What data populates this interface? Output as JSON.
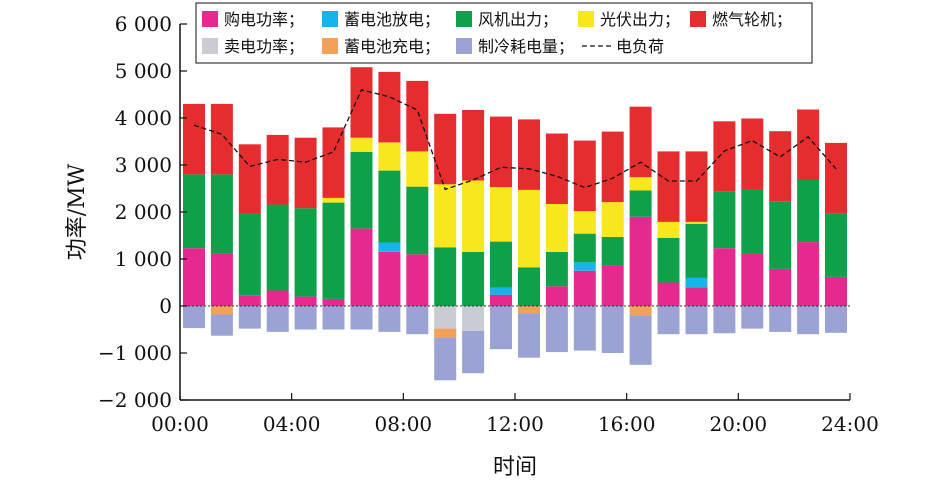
{
  "chart_data": {
    "type": "bar",
    "stacked": true,
    "xlabel": "时间",
    "ylabel": "功率/MW",
    "ylim": [
      -2000,
      6000
    ],
    "xlim": [
      0,
      24
    ],
    "x_ticks": [
      "00:00",
      "04:00",
      "08:00",
      "12:00",
      "16:00",
      "20:00",
      "24:00"
    ],
    "y_ticks": [
      "−2 000",
      "−1 000",
      "0",
      "1 000",
      "2 000",
      "3 000",
      "4 000",
      "5 000",
      "6 000"
    ],
    "hours": [
      1,
      2,
      3,
      4,
      5,
      6,
      7,
      8,
      9,
      10,
      11,
      12,
      13,
      14,
      15,
      16,
      17,
      18,
      19,
      20,
      21,
      22,
      23,
      24
    ],
    "legend_position": "top",
    "series": [
      {
        "name": "购电功率；",
        "color": "#e6298f",
        "values": [
          1230,
          1120,
          230,
          330,
          200,
          150,
          1650,
          1150,
          1100,
          0,
          0,
          240,
          0,
          420,
          750,
          870,
          1900,
          500,
          400,
          1230,
          1110,
          790,
          1360,
          620
        ]
      },
      {
        "name": "蓄电池放电；",
        "color": "#16b4ea",
        "values": [
          0,
          0,
          0,
          0,
          0,
          0,
          0,
          200,
          0,
          0,
          0,
          150,
          0,
          0,
          180,
          0,
          0,
          0,
          200,
          0,
          0,
          0,
          0,
          0
        ]
      },
      {
        "name": "风机出力；",
        "color": "#0fa14a",
        "values": [
          1570,
          1680,
          1730,
          1830,
          1880,
          2050,
          1630,
          1530,
          1440,
          1250,
          1150,
          980,
          820,
          730,
          610,
          600,
          560,
          950,
          1150,
          1200,
          1380,
          1430,
          1320,
          1350
        ]
      },
      {
        "name": "光伏出力；",
        "color": "#f8e71c",
        "values": [
          0,
          0,
          0,
          0,
          0,
          100,
          300,
          600,
          750,
          1340,
          1520,
          1160,
          1650,
          1020,
          480,
          740,
          280,
          340,
          40,
          0,
          0,
          0,
          0,
          0
        ]
      },
      {
        "name": "燃气轮机；",
        "color": "#e52d2f",
        "values": [
          1500,
          1500,
          1480,
          1480,
          1500,
          1500,
          1500,
          1500,
          1500,
          1500,
          1500,
          1500,
          1500,
          1500,
          1500,
          1500,
          1500,
          1500,
          1500,
          1500,
          1500,
          1500,
          1500,
          1500
        ]
      },
      {
        "name": "卖电功率；",
        "color": "#c9ccd3",
        "values": [
          0,
          0,
          0,
          0,
          0,
          0,
          0,
          0,
          0,
          -480,
          -530,
          0,
          0,
          0,
          0,
          0,
          0,
          0,
          0,
          0,
          0,
          0,
          0,
          0
        ]
      },
      {
        "name": "蓄电池充电；",
        "color": "#f2a05a",
        "values": [
          0,
          -180,
          0,
          0,
          0,
          0,
          0,
          0,
          0,
          -200,
          0,
          0,
          -150,
          0,
          0,
          0,
          -200,
          0,
          0,
          0,
          0,
          0,
          0,
          0
        ]
      },
      {
        "name": "制冷耗电量；",
        "color": "#9aa3d4",
        "values": [
          -470,
          -450,
          -480,
          -550,
          -500,
          -500,
          -500,
          -550,
          -600,
          -900,
          -900,
          -920,
          -950,
          -980,
          -950,
          -1000,
          -1050,
          -600,
          -600,
          -580,
          -480,
          -550,
          -600,
          -570
        ]
      }
    ],
    "load": {
      "name": "电负荷",
      "color": "#111111",
      "values": [
        3850,
        3650,
        2970,
        3120,
        3060,
        3280,
        4600,
        4450,
        4170,
        2480,
        2680,
        2950,
        2920,
        2760,
        2520,
        2720,
        3060,
        2660,
        2660,
        3300,
        3520,
        3170,
        3600,
        2920
      ]
    }
  }
}
